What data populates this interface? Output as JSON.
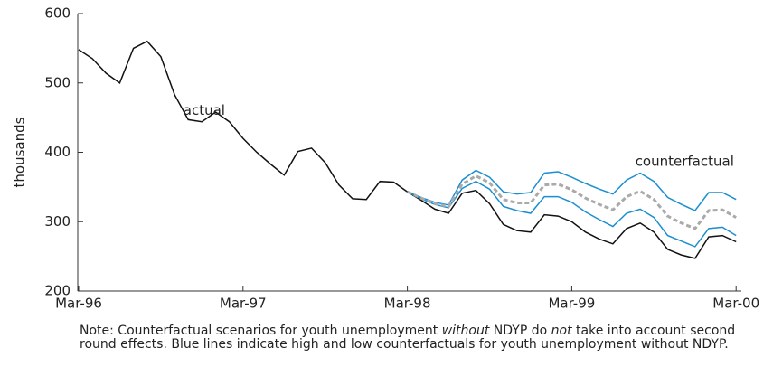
{
  "chart_data": {
    "type": "line",
    "y_label": "thousands",
    "categories": [
      "Mar-96",
      null,
      null,
      null,
      null,
      null,
      null,
      null,
      null,
      null,
      null,
      null,
      "Mar-97",
      null,
      null,
      null,
      null,
      null,
      null,
      null,
      null,
      null,
      null,
      null,
      "Mar-98",
      null,
      null,
      null,
      null,
      null,
      null,
      null,
      null,
      null,
      null,
      null,
      "Mar-99",
      null,
      null,
      null,
      null,
      null,
      null,
      null,
      null,
      null,
      null,
      null,
      "Mar-00"
    ],
    "series": [
      {
        "color": "#111111",
        "style": "solid",
        "values": [
          548,
          535,
          514,
          500,
          550,
          560,
          538,
          483,
          447,
          444,
          458,
          444,
          420,
          400,
          383,
          367,
          401,
          406,
          385,
          353,
          333,
          332,
          358,
          357,
          343,
          331,
          318,
          312,
          341,
          345,
          326,
          296,
          287,
          285,
          310,
          308,
          300,
          285,
          275,
          268,
          290,
          298,
          285,
          260,
          252,
          247,
          278,
          280,
          271
        ]
      },
      {
        "color": "#1a8fd0",
        "style": "solid",
        "values": [
          null,
          null,
          null,
          null,
          null,
          null,
          null,
          null,
          null,
          null,
          null,
          null,
          null,
          null,
          null,
          null,
          null,
          null,
          null,
          null,
          null,
          null,
          null,
          null,
          343,
          335,
          328,
          324,
          360,
          374,
          364,
          343,
          340,
          342,
          370,
          372,
          364,
          355,
          347,
          340,
          360,
          370,
          358,
          335,
          325,
          316,
          342,
          342,
          332
        ]
      },
      {
        "color": "#1a8fd0",
        "style": "solid",
        "values": [
          null,
          null,
          null,
          null,
          null,
          null,
          null,
          null,
          null,
          null,
          null,
          null,
          null,
          null,
          null,
          null,
          null,
          null,
          null,
          null,
          null,
          null,
          null,
          null,
          343,
          333,
          325,
          320,
          348,
          358,
          347,
          322,
          316,
          312,
          336,
          336,
          328,
          314,
          303,
          293,
          312,
          318,
          306,
          280,
          272,
          264,
          290,
          292,
          280
        ]
      },
      {
        "color": "#aaaaaa",
        "style": "dashed",
        "values": [
          null,
          null,
          null,
          null,
          null,
          null,
          null,
          null,
          null,
          null,
          null,
          null,
          null,
          null,
          null,
          null,
          null,
          null,
          null,
          null,
          null,
          null,
          null,
          null,
          343,
          334,
          326,
          322,
          354,
          366,
          356,
          332,
          327,
          327,
          353,
          354,
          346,
          334,
          325,
          317,
          336,
          344,
          332,
          308,
          298,
          290,
          316,
          317,
          306
        ]
      }
    ],
    "ylim": [
      200,
      600
    ],
    "yticks": [
      200,
      300,
      400,
      500,
      600
    ],
    "annotations": [
      {
        "text": "actual",
        "x": 5,
        "y": 460
      },
      {
        "text": "counterfactual",
        "x": 38,
        "y": 386
      }
    ]
  },
  "note": [
    "Note: Counterfactual scenarios for youth unemployment ",
    "without",
    " NDYP do ",
    "not",
    " take into account second round effects.  Blue lines indicate high and low counterfactuals for youth unemployment without NDYP."
  ]
}
